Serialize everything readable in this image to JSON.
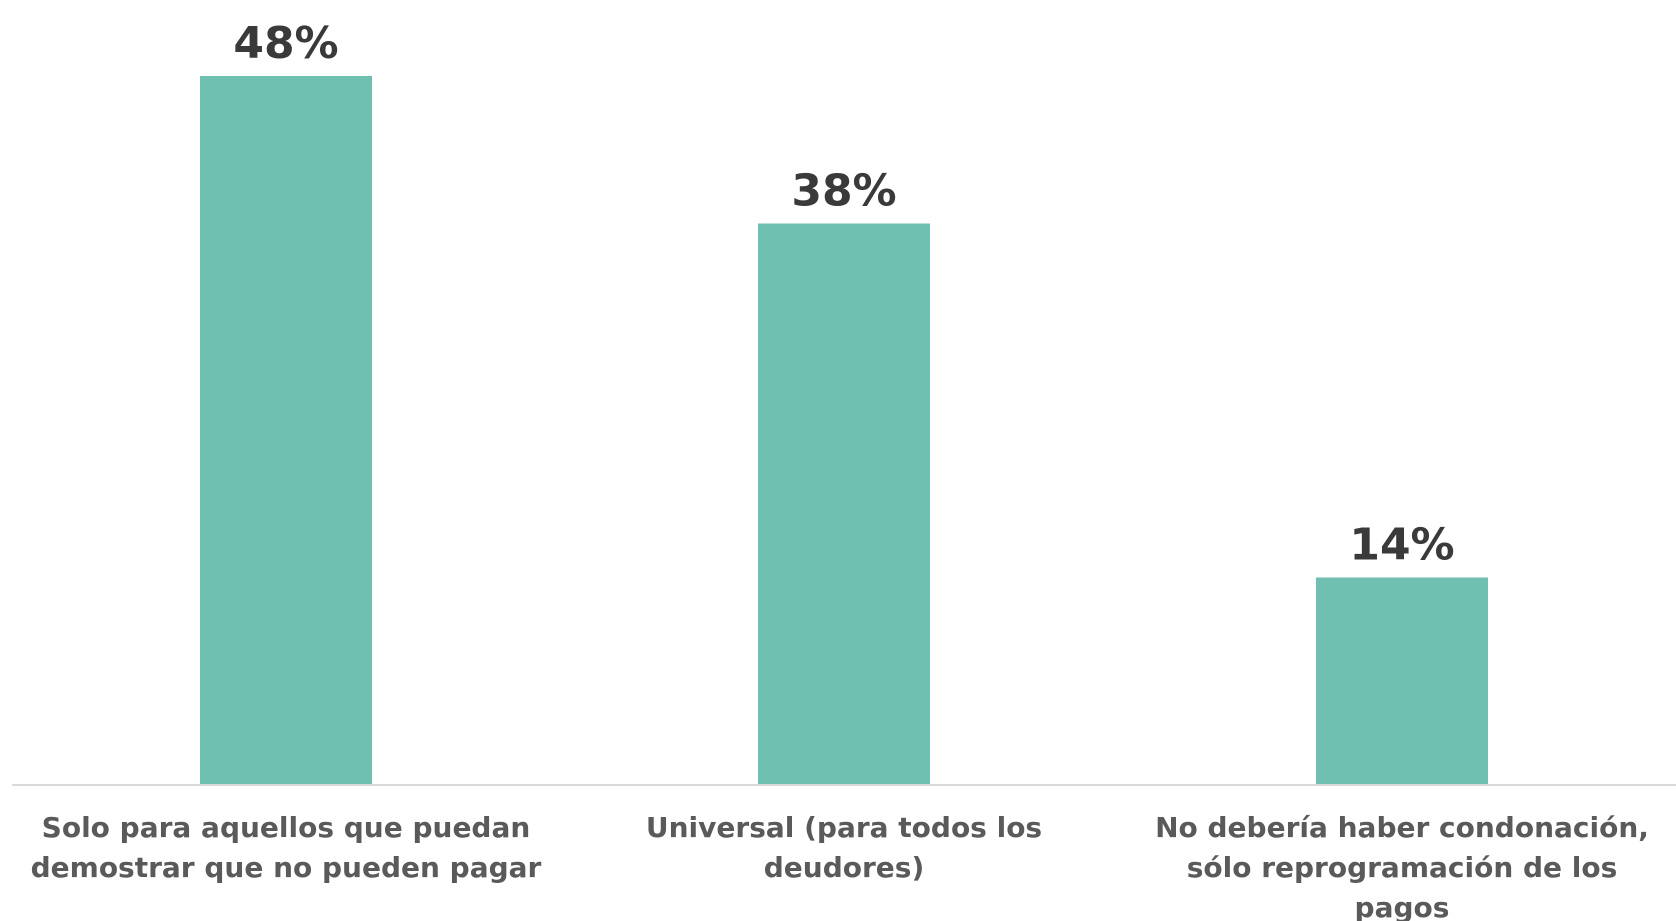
{
  "chart_data": {
    "type": "bar",
    "categories": [
      [
        "Solo para aquellos que puedan",
        "demostrar que no pueden pagar"
      ],
      [
        "Universal (para todos los",
        "deudores)"
      ],
      [
        "No debería haber condonación,",
        "sólo reprogramación de los",
        "pagos"
      ]
    ],
    "values": [
      48,
      38,
      14
    ],
    "value_labels": [
      "48%",
      "38%",
      "14%"
    ],
    "bar_color": "#70c0b2",
    "axis_color": "#d9d9d9",
    "ylim": [
      0,
      50
    ],
    "grid": false,
    "legend": "none"
  }
}
